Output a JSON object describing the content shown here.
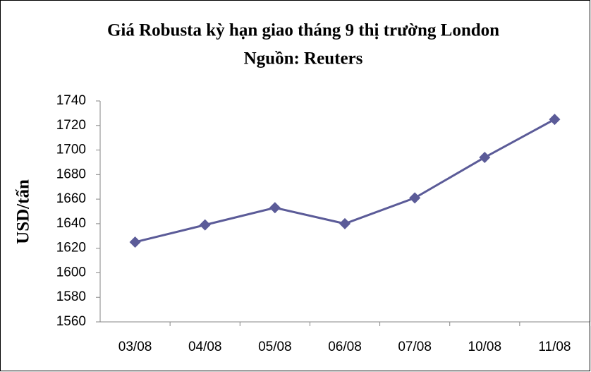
{
  "chart_data": {
    "type": "line",
    "title": "Giá Robusta kỳ hạn giao tháng 9 thị trường London",
    "subtitle": "Nguồn: Reuters",
    "y_label": "USD/tấn",
    "categories": [
      "03/08",
      "04/08",
      "05/08",
      "06/08",
      "07/08",
      "10/08",
      "11/08"
    ],
    "series": [
      {
        "name": "Robusta",
        "color": "#5b5b98",
        "values": [
          1625,
          1639,
          1653,
          1640,
          1661,
          1694,
          1725
        ]
      }
    ],
    "ylim": [
      1560,
      1740
    ],
    "yticks": [
      1560,
      1580,
      1600,
      1620,
      1640,
      1660,
      1680,
      1700,
      1720,
      1740
    ],
    "grid": false
  }
}
